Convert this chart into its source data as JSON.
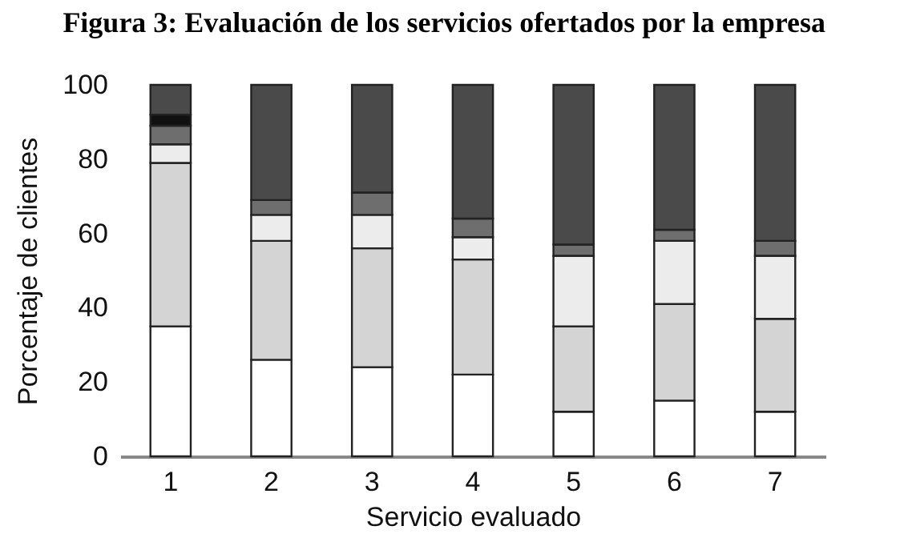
{
  "chart_data": {
    "type": "bar",
    "title": "Figura 3: Evaluación de los servicios ofertados por la empresa",
    "xlabel": "Servicio evaluado",
    "ylabel": "Porcentaje de clientes",
    "categories": [
      "1",
      "2",
      "3",
      "4",
      "5",
      "6",
      "7"
    ],
    "stacked": true,
    "series": [
      {
        "color": "#ffffff",
        "values": [
          35,
          26,
          24,
          22,
          12,
          15,
          12
        ]
      },
      {
        "color": "#d4d4d4",
        "values": [
          44,
          32,
          32,
          31,
          23,
          26,
          25
        ]
      },
      {
        "color": "#ececec",
        "values": [
          5,
          7,
          9,
          6,
          19,
          17,
          17
        ]
      },
      {
        "color": "#6e6e6e",
        "values": [
          5,
          4,
          6,
          5,
          3,
          3,
          4
        ]
      },
      {
        "color": "#111111",
        "values": [
          3,
          null,
          null,
          null,
          null,
          null,
          null
        ]
      },
      {
        "color": "#4a4a4a",
        "values": [
          8,
          31,
          29,
          36,
          43,
          39,
          42
        ]
      }
    ],
    "ylim": [
      0,
      100
    ],
    "yticks": [
      0,
      20,
      40,
      60,
      80,
      100
    ],
    "grid": false,
    "legend": false
  }
}
